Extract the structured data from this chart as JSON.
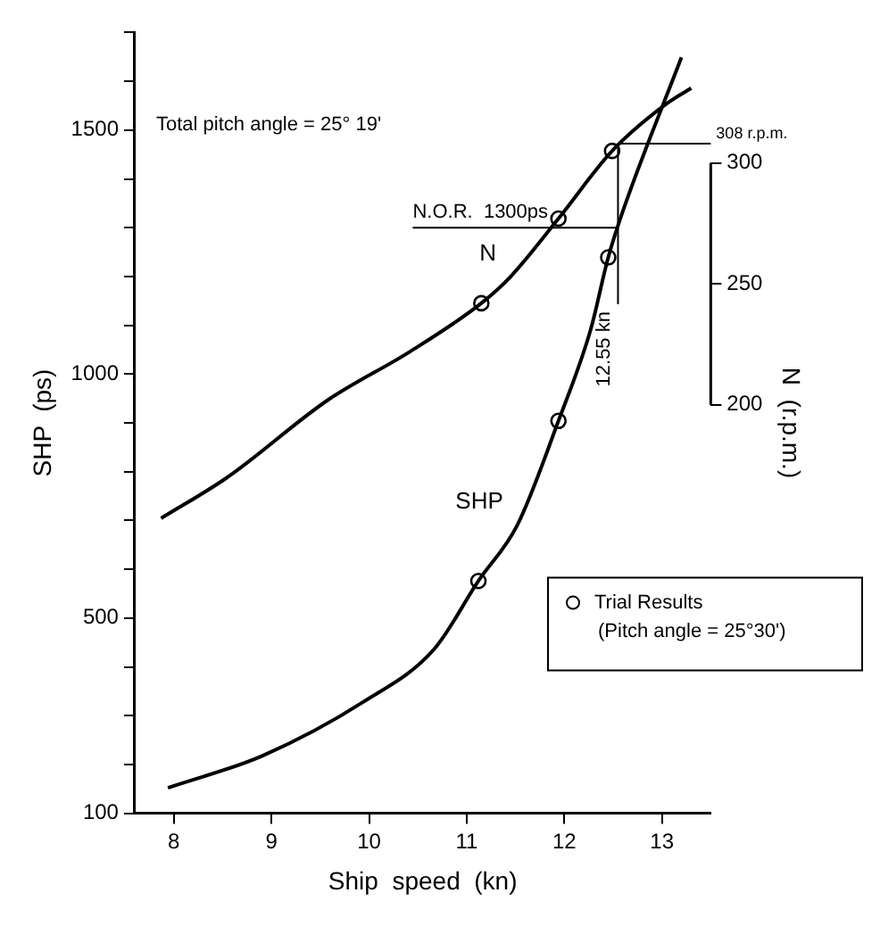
{
  "chart_data": {
    "type": "line",
    "xlabel": "Ship  speed  (kn)",
    "ylabel": "SHP  (ps)",
    "y2label": "N  (r.p.m.)",
    "xlim": [
      7.6,
      13.5
    ],
    "xticks": [
      8,
      9,
      10,
      11,
      12,
      13
    ],
    "ylim": [
      100,
      1700
    ],
    "yticks": [
      100,
      {
        "value": 200,
        "label": null
      },
      {
        "value": 300,
        "label": null
      },
      {
        "value": 400,
        "label": null
      },
      500,
      {
        "value": 600,
        "label": null
      },
      {
        "value": 700,
        "label": null
      },
      {
        "value": 800,
        "label": null
      },
      {
        "value": 900,
        "label": null
      },
      1000,
      {
        "value": 1100,
        "label": null
      },
      {
        "value": 1200,
        "label": null
      },
      {
        "value": 1300,
        "label": null
      },
      {
        "value": 1400,
        "label": null
      },
      1500,
      {
        "value": 1600,
        "label": null
      },
      {
        "value": 1700,
        "label": null
      }
    ],
    "y2lim": [
      31,
      354
    ],
    "y2ticks": [
      200,
      250,
      300
    ],
    "grid": false,
    "legend": "bottom right",
    "marker": "none",
    "line_style": "solid",
    "annotations": [
      "Total pitch angle = 25° 19'",
      "(Pitch angle = 25°30')"
    ],
    "ref_lines": [
      {
        "axis": "y",
        "value": 1300,
        "label": "N.O.R.  1300ps"
      },
      {
        "axis": "x",
        "value": 12.55,
        "label": "12.55 kn"
      },
      {
        "axis": "y2",
        "value": 308,
        "label": "308 r.p.m."
      }
    ],
    "series": [
      {
        "name": "N",
        "axis": "y2",
        "color": "#000000",
        "x": [
          7.87,
          8.55,
          9.58,
          10.42,
          11.15,
          11.45,
          11.94,
          12.49,
          13.03,
          13.3
        ],
        "values": [
          153,
          170,
          202,
          222,
          242,
          253,
          277,
          305,
          324,
          331
        ]
      },
      {
        "name": "SHP",
        "color": "#000000",
        "x": [
          7.94,
          8.91,
          9.94,
          10.67,
          11.12,
          11.52,
          11.94,
          12.27,
          12.45,
          12.6,
          13.2
        ],
        "values": [
          152,
          218,
          328,
          437,
          576,
          691,
          904,
          1091,
          1239,
          1334,
          1649
        ]
      },
      {
        "name": "Trial Results",
        "type": "scatter",
        "marker": "circle",
        "color": "#000000",
        "x": [
          11.12,
          11.94,
          12.45
        ],
        "values": [
          576,
          904,
          1239
        ]
      },
      {
        "type": "scatter",
        "axis": "y2",
        "marker": "circle",
        "color": "#000000",
        "x": [
          11.15,
          11.94,
          12.49
        ],
        "values": [
          242,
          277,
          305
        ]
      }
    ]
  }
}
